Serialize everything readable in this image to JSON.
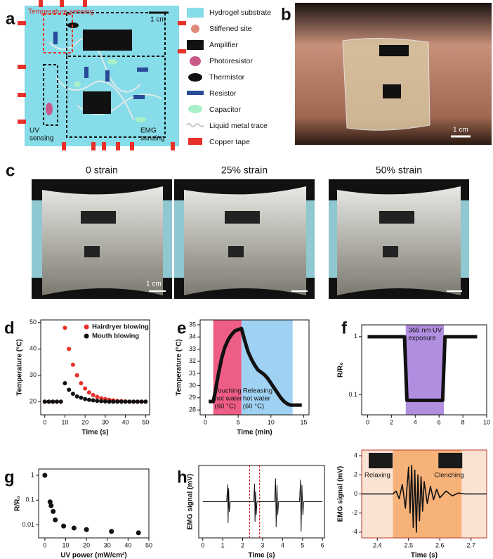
{
  "panels": {
    "letters": [
      "a",
      "b",
      "c",
      "d",
      "e",
      "f",
      "g",
      "h"
    ]
  },
  "diagram": {
    "labels": {
      "temperature": "Temperature sensing",
      "scale": "1 cm",
      "uv": [
        "UV",
        "sensing"
      ],
      "emg": [
        "EMG",
        "sensing"
      ]
    },
    "legend": [
      "Hydrogel substrate",
      "Stiffened site",
      "Amplifier",
      "Photoresistor",
      "Thermistor",
      "Resistor",
      "Capacitor",
      "Liquid metal trace",
      "Copper tape"
    ]
  },
  "photo_b": {
    "scale": "1 cm"
  },
  "photo_c": {
    "captions": [
      "0 strain",
      "25% strain",
      "50% strain"
    ],
    "scale": "1 cm"
  },
  "chart_data": [
    {
      "type": "scatter",
      "xlabel": "Time (s)",
      "ylabel": "Temperature (°C)",
      "x": [
        0,
        2,
        4,
        6,
        8,
        10,
        12,
        14,
        16,
        18,
        20,
        22,
        24,
        26,
        28,
        30,
        32,
        34,
        36,
        38,
        40,
        42,
        44,
        46,
        48,
        50
      ],
      "xlim": [
        -2,
        52
      ],
      "xticks": [
        0,
        10,
        20,
        30,
        40,
        50
      ],
      "ylim": [
        15,
        51
      ],
      "yticks": [
        20,
        30,
        40,
        50
      ],
      "legend": "upper right",
      "series": [
        {
          "name": "Hairdryer blowing",
          "color": "#e8302a",
          "values": [
            20,
            20,
            20,
            20,
            20,
            48,
            40,
            34,
            30,
            27,
            25,
            23.5,
            22.5,
            21.8,
            21.3,
            21,
            20.7,
            20.5,
            20.3,
            20.2,
            20.1,
            20,
            20,
            20,
            20,
            20
          ]
        },
        {
          "name": "Mouth blowing",
          "color": "#111111",
          "values": [
            20,
            20,
            20,
            20,
            20,
            27,
            24.5,
            23,
            22,
            21.5,
            21,
            20.7,
            20.5,
            20.3,
            20.2,
            20.1,
            20,
            20,
            20,
            20,
            20,
            20,
            20,
            20,
            20,
            20
          ]
        }
      ]
    },
    {
      "type": "line",
      "xlabel": "Time (min)",
      "ylabel": "Temperature (°C)",
      "x": [
        0.5,
        1.2,
        1.5,
        2,
        2.5,
        3,
        3.5,
        4,
        4.5,
        5,
        5.5,
        6,
        6.5,
        7,
        7.5,
        8,
        8.5,
        9,
        9.5,
        10,
        10.5,
        11,
        11.5,
        12,
        12.5,
        13,
        14,
        14.7
      ],
      "xlim": [
        -0.8,
        15.8
      ],
      "xticks": [
        0,
        5,
        10,
        15
      ],
      "ylim": [
        27.6,
        35.4
      ],
      "yticks": [
        28,
        29,
        30,
        31,
        32,
        33,
        34,
        35
      ],
      "spans": [
        {
          "xlim": [
            1.2,
            5.5
          ],
          "color": "#ee5d86",
          "label": [
            "Touching",
            "hot water",
            "(60 °C)"
          ]
        },
        {
          "xlim": [
            5.5,
            13.3
          ],
          "color": "#9fd2f2",
          "label": [
            "Releasing",
            "hot water",
            "(60 °C)"
          ]
        }
      ],
      "series": [
        {
          "color": "#111111",
          "values": [
            28.7,
            28.7,
            29.5,
            31,
            32.3,
            33.2,
            33.8,
            34.2,
            34.5,
            34.6,
            34.7,
            33.7,
            32.8,
            32.2,
            31.7,
            31.3,
            31.1,
            30.9,
            30.6,
            30.2,
            29.8,
            29.4,
            29,
            28.7,
            28.5,
            28.4,
            28.4,
            28.4
          ]
        }
      ]
    },
    {
      "type": "line",
      "ylabel": "R/R₀",
      "yscale": "log",
      "x": [
        0,
        0.5,
        1,
        1.5,
        2,
        2.5,
        3,
        3.1,
        3.3,
        3.5,
        4,
        4.5,
        5,
        5.5,
        6,
        6.3,
        6.5,
        7,
        7.5,
        8,
        8.5,
        9,
        9.2
      ],
      "xlim": [
        -0.5,
        10
      ],
      "xticks": [
        0,
        2,
        4,
        6,
        8,
        10
      ],
      "ylim": [
        0.045,
        1.6
      ],
      "yticks": [
        0.1,
        1
      ],
      "spans": [
        {
          "xlim": [
            3.2,
            6.4
          ],
          "color": "#b08ee0",
          "label": [
            "365 nm UV",
            "exposure"
          ]
        }
      ],
      "series": [
        {
          "color": "#111111",
          "values": [
            1,
            1,
            1,
            1,
            1,
            1,
            1,
            1,
            0.08,
            0.08,
            0.08,
            0.08,
            0.08,
            0.08,
            0.08,
            0.08,
            1,
            1,
            1,
            1,
            1,
            1,
            1
          ]
        }
      ]
    },
    {
      "type": "scatter",
      "xlabel": "UV power (mW/cm²)",
      "ylabel": "R/R₀",
      "yscale": "log",
      "x": [
        0,
        2.5,
        3,
        4,
        5,
        9,
        14,
        20,
        32,
        45
      ],
      "xlim": [
        -3,
        50
      ],
      "xticks": [
        0,
        10,
        20,
        30,
        40,
        50
      ],
      "ylim": [
        0.003,
        1.8
      ],
      "yticks": [
        0.01,
        0.1,
        1
      ],
      "series": [
        {
          "color": "#111111",
          "values": [
            1,
            0.085,
            0.06,
            0.035,
            0.016,
            0.009,
            0.0075,
            0.0065,
            0.0055,
            0.0048
          ]
        }
      ]
    },
    {
      "type": "line",
      "xlabel": "Time (s)",
      "ylabel": "EMG signal (mV)",
      "x": [
        0,
        1.2,
        1.25,
        1.27,
        1.3,
        1.33,
        1.38,
        2.55,
        2.6,
        2.62,
        2.65,
        2.68,
        2.72,
        3.6,
        3.65,
        3.68,
        3.72,
        3.76,
        3.8,
        4.85,
        4.9,
        4.93,
        4.97,
        5.02,
        5.06,
        6
      ],
      "xlim": [
        -0.2,
        6.1
      ],
      "xticks": [
        0,
        1,
        2,
        3,
        4,
        5,
        6
      ],
      "ylim": [
        -5.5,
        5.5
      ],
      "markers": {
        "x": [
          2.35,
          2.85
        ],
        "color": "#d62728"
      },
      "series": [
        {
          "color": "#111111",
          "values": [
            0,
            0,
            2.6,
            -3.2,
            2,
            -1.5,
            0,
            0,
            2.7,
            -3,
            1.5,
            -2,
            0,
            0,
            3.5,
            -3.8,
            2.5,
            -2,
            0,
            0,
            3.3,
            -4.5,
            2.5,
            -2,
            0,
            0
          ]
        }
      ]
    },
    {
      "type": "line",
      "xlabel": "Time (s)",
      "ylabel": "EMG signal (mV)",
      "x": [
        2.35,
        2.45,
        2.46,
        2.47,
        2.48,
        2.49,
        2.5,
        2.505,
        2.51,
        2.515,
        2.52,
        2.525,
        2.53,
        2.535,
        2.54,
        2.545,
        2.55,
        2.56,
        2.57,
        2.58,
        2.59,
        2.6,
        2.62,
        2.64,
        2.66,
        2.68,
        2.75
      ],
      "xlim": [
        2.35,
        2.75
      ],
      "xticks": [
        2.4,
        2.5,
        2.6,
        2.7
      ],
      "ylim": [
        -4.6,
        4.6
      ],
      "yticks": [
        -4,
        -2,
        0,
        2,
        4
      ],
      "spans": [
        {
          "xlim": [
            2.35,
            2.45
          ],
          "color": "#fbe3d3"
        },
        {
          "xlim": [
            2.45,
            2.67
          ],
          "color": "#f7b27a"
        },
        {
          "xlim": [
            2.67,
            2.75
          ],
          "color": "#fbe3d3"
        }
      ],
      "annotations": [
        "Relaxing",
        "Clenching"
      ],
      "series": [
        {
          "color": "#111111",
          "values": [
            0,
            0,
            0.3,
            -0.5,
            1,
            -1.5,
            2.8,
            -2,
            3,
            -3.5,
            2.5,
            -4,
            2,
            -2.8,
            1.8,
            -1.8,
            1.3,
            -1,
            0.8,
            -0.6,
            0.5,
            -0.4,
            0.3,
            -0.2,
            0.1,
            0,
            0
          ]
        }
      ]
    }
  ]
}
